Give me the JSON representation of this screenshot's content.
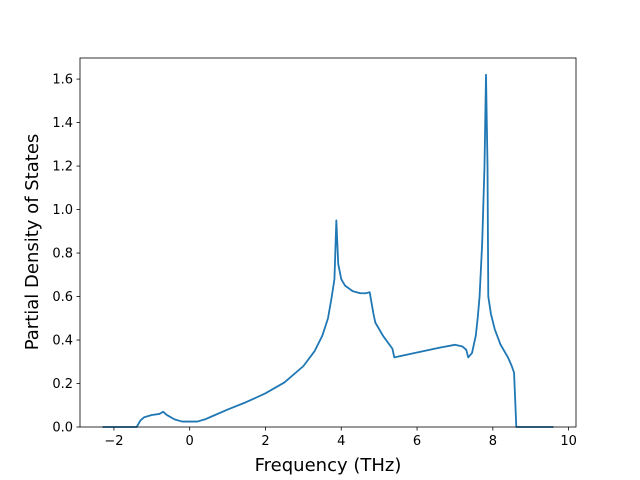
{
  "chart_data": {
    "type": "line",
    "xlabel": "Frequency (THz)",
    "ylabel": "Partial Density of States",
    "x": [
      -2.3,
      -1.4,
      -1.3,
      -1.2,
      -1.0,
      -0.8,
      -0.7,
      -0.6,
      -0.4,
      -0.2,
      0,
      0.2,
      0.4,
      0.6,
      1.0,
      1.5,
      2.0,
      2.5,
      3.0,
      3.3,
      3.5,
      3.65,
      3.75,
      3.82,
      3.87,
      3.92,
      4.0,
      4.1,
      4.3,
      4.5,
      4.65,
      4.75,
      4.85,
      4.9,
      5.1,
      5.35,
      5.4,
      5.8,
      6.2,
      6.6,
      7.0,
      7.2,
      7.3,
      7.35,
      7.45,
      7.55,
      7.6,
      7.65,
      7.72,
      7.78,
      7.82,
      7.86,
      7.88,
      7.95,
      8.05,
      8.2,
      8.4,
      8.5,
      8.56,
      8.62,
      9.0,
      9.6
    ],
    "series": [
      {
        "name": "pdos",
        "color": "#1f77b4",
        "values": [
          0,
          0,
          0.03,
          0.045,
          0.055,
          0.06,
          0.07,
          0.055,
          0.035,
          0.025,
          0.025,
          0.025,
          0.035,
          0.05,
          0.08,
          0.115,
          0.155,
          0.205,
          0.28,
          0.35,
          0.42,
          0.5,
          0.6,
          0.68,
          0.95,
          0.75,
          0.68,
          0.65,
          0.625,
          0.615,
          0.615,
          0.62,
          0.52,
          0.48,
          0.42,
          0.36,
          0.32,
          0.335,
          0.35,
          0.365,
          0.378,
          0.37,
          0.355,
          0.32,
          0.34,
          0.42,
          0.5,
          0.6,
          0.85,
          1.2,
          1.62,
          1.2,
          0.6,
          0.52,
          0.45,
          0.38,
          0.32,
          0.28,
          0.25,
          0.0,
          0,
          0
        ]
      }
    ],
    "xlim": [
      -2.895,
      10.195
    ],
    "ylim": [
      0,
      1.697
    ],
    "xticks": [
      {
        "value": -2,
        "label": "−2"
      },
      0,
      2,
      4,
      6,
      8,
      10
    ],
    "yticks": [
      {
        "value": 0,
        "label": "0.0"
      },
      0.2,
      0.4,
      0.6,
      0.8,
      {
        "value": 1,
        "label": "1.0"
      },
      1.2,
      1.4,
      1.6
    ]
  }
}
